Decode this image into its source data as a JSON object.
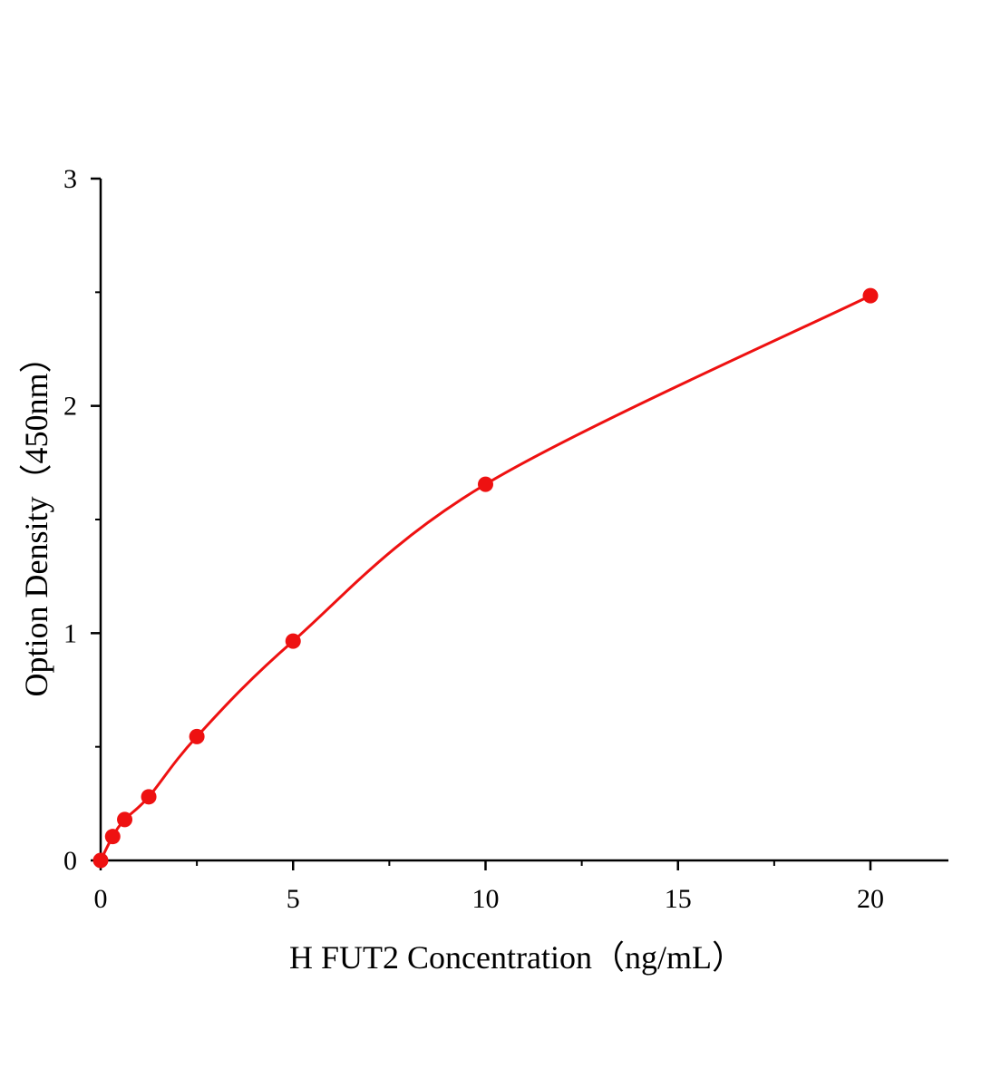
{
  "chart_data": {
    "type": "scatter",
    "title": "",
    "xlabel": "H FUT2 Concentration（ng/mL）",
    "ylabel": "Option Density（450nm）",
    "xlim": [
      0,
      22
    ],
    "ylim": [
      0,
      3
    ],
    "xticks": [
      0,
      5,
      10,
      15,
      20
    ],
    "yticks": [
      0,
      1,
      2,
      3
    ],
    "grid": false,
    "color": "#ee1111",
    "series": [
      {
        "x": [
          0,
          0.3125,
          0.625,
          1.25,
          2.5,
          5,
          10,
          20
        ],
        "y": [
          0.0,
          0.105,
          0.18,
          0.28,
          0.545,
          0.965,
          1.655,
          2.485
        ],
        "fit_line": true
      }
    ]
  }
}
